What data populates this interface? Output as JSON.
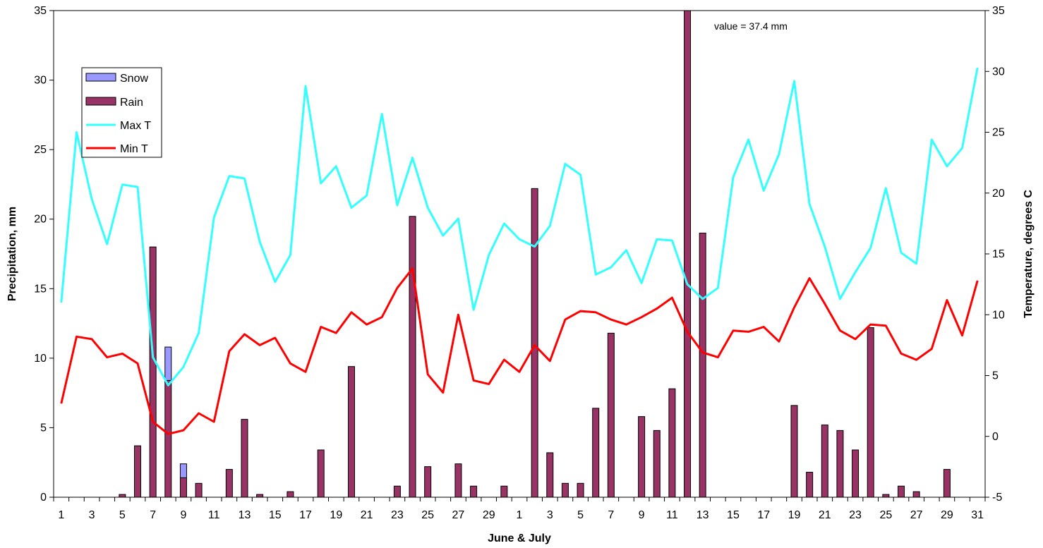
{
  "chart_data": {
    "type": "bar",
    "xlabel": "June & July",
    "ylabel_left": "Precipitation, mm",
    "ylabel_right": "Temperature, degrees C",
    "ylim_left": [
      0,
      35
    ],
    "ylim_right": [
      -5,
      35
    ],
    "yticks_left": [
      "0",
      "5",
      "10",
      "15",
      "20",
      "25",
      "30",
      "35"
    ],
    "yticks_right": [
      "-5",
      "0",
      "5",
      "10",
      "15",
      "20",
      "25",
      "30",
      "35"
    ],
    "xtick_labels": [
      "1",
      "3",
      "5",
      "7",
      "9",
      "11",
      "13",
      "15",
      "17",
      "19",
      "21",
      "23",
      "25",
      "27",
      "29",
      "1",
      "3",
      "5",
      "7",
      "9",
      "11",
      "13",
      "15",
      "17",
      "19",
      "21",
      "23",
      "25",
      "27",
      "29",
      "31"
    ],
    "grid": false,
    "legend_position": "top-left",
    "annotation": "value = 37.4 mm",
    "categories": [
      "Jun 1",
      "Jun 2",
      "Jun 3",
      "Jun 4",
      "Jun 5",
      "Jun 6",
      "Jun 7",
      "Jun 8",
      "Jun 9",
      "Jun 10",
      "Jun 11",
      "Jun 12",
      "Jun 13",
      "Jun 14",
      "Jun 15",
      "Jun 16",
      "Jun 17",
      "Jun 18",
      "Jun 19",
      "Jun 20",
      "Jun 21",
      "Jun 22",
      "Jun 23",
      "Jun 24",
      "Jun 25",
      "Jun 26",
      "Jun 27",
      "Jun 28",
      "Jun 29",
      "Jun 30",
      "Jul 1",
      "Jul 2",
      "Jul 3",
      "Jul 4",
      "Jul 5",
      "Jul 6",
      "Jul 7",
      "Jul 8",
      "Jul 9",
      "Jul 10",
      "Jul 11",
      "Jul 12",
      "Jul 13",
      "Jul 14",
      "Jul 15",
      "Jul 16",
      "Jul 17",
      "Jul 18",
      "Jul 19",
      "Jul 20",
      "Jul 21",
      "Jul 22",
      "Jul 23",
      "Jul 24",
      "Jul 25",
      "Jul 26",
      "Jul 27",
      "Jul 28",
      "Jul 29",
      "Jul 30",
      "Jul 31"
    ],
    "series": [
      {
        "name": "Snow",
        "kind": "bar",
        "axis": "left",
        "stack_on": "Rain",
        "color": "#9999ff",
        "values": [
          0,
          0,
          0,
          0,
          0,
          0,
          0,
          2.4,
          1.0,
          0,
          0,
          0,
          0,
          0,
          0,
          0,
          0,
          0,
          0,
          0,
          0,
          0,
          0,
          0,
          0,
          0,
          0,
          0,
          0,
          0,
          0,
          0,
          0,
          0,
          0,
          0,
          0,
          0,
          0,
          0,
          0,
          0,
          0,
          0,
          0,
          0,
          0,
          0,
          0,
          0,
          0,
          0,
          0,
          0,
          0,
          0,
          0,
          0,
          0,
          0,
          0
        ]
      },
      {
        "name": "Rain",
        "kind": "bar",
        "axis": "left",
        "color": "#993366",
        "values": [
          0,
          0,
          0,
          0,
          0.2,
          3.7,
          18.0,
          8.4,
          1.4,
          1.0,
          0,
          2.0,
          5.6,
          0.2,
          0,
          0.4,
          0,
          3.4,
          0,
          9.4,
          0,
          0,
          0.8,
          20.2,
          2.2,
          0,
          2.4,
          0.8,
          0,
          0.8,
          0,
          22.2,
          3.2,
          1.0,
          1.0,
          6.4,
          11.8,
          0,
          5.8,
          4.8,
          7.8,
          37.4,
          19.0,
          0,
          0,
          0,
          0,
          0,
          6.6,
          1.8,
          5.2,
          4.8,
          3.4,
          12.2,
          0.2,
          0.8,
          0.4,
          0,
          2.0,
          0,
          0
        ]
      },
      {
        "name": "Max T",
        "kind": "line",
        "axis": "right",
        "color": "#33ffff",
        "values": [
          11.0,
          25.0,
          19.5,
          15.8,
          20.7,
          20.5,
          6.5,
          4.2,
          5.7,
          8.5,
          18.0,
          21.4,
          21.2,
          16.0,
          12.7,
          14.9,
          28.8,
          20.8,
          22.2,
          18.8,
          19.8,
          26.5,
          19.0,
          22.9,
          18.8,
          16.5,
          17.9,
          10.4,
          14.9,
          17.5,
          16.2,
          15.6,
          17.3,
          22.4,
          21.5,
          13.3,
          13.9,
          15.3,
          12.6,
          16.2,
          16.1,
          12.5,
          11.3,
          12.2,
          21.3,
          24.4,
          20.2,
          23.2,
          29.2,
          19.1,
          15.6,
          11.3,
          13.5,
          15.5,
          20.4,
          15.1,
          14.2,
          24.4,
          22.2,
          23.7,
          30.3
        ]
      },
      {
        "name": "Min T",
        "kind": "line",
        "axis": "right",
        "color": "#ff0000",
        "values": [
          2.7,
          8.2,
          8.0,
          6.5,
          6.8,
          6.0,
          1.2,
          0.2,
          0.5,
          1.9,
          1.2,
          7.0,
          8.4,
          7.5,
          8.1,
          6.0,
          5.3,
          9.0,
          8.5,
          10.2,
          9.2,
          9.8,
          12.2,
          13.8,
          5.1,
          3.6,
          10.0,
          4.6,
          4.3,
          6.3,
          5.3,
          7.5,
          6.2,
          9.6,
          10.3,
          10.2,
          9.6,
          9.2,
          9.8,
          10.5,
          11.4,
          8.6,
          6.9,
          6.5,
          8.7,
          8.6,
          9.0,
          7.8,
          10.6,
          13.0,
          10.9,
          8.7,
          8.0,
          9.2,
          9.1,
          6.8,
          6.3,
          7.2,
          11.2,
          8.3,
          12.8
        ]
      }
    ]
  }
}
